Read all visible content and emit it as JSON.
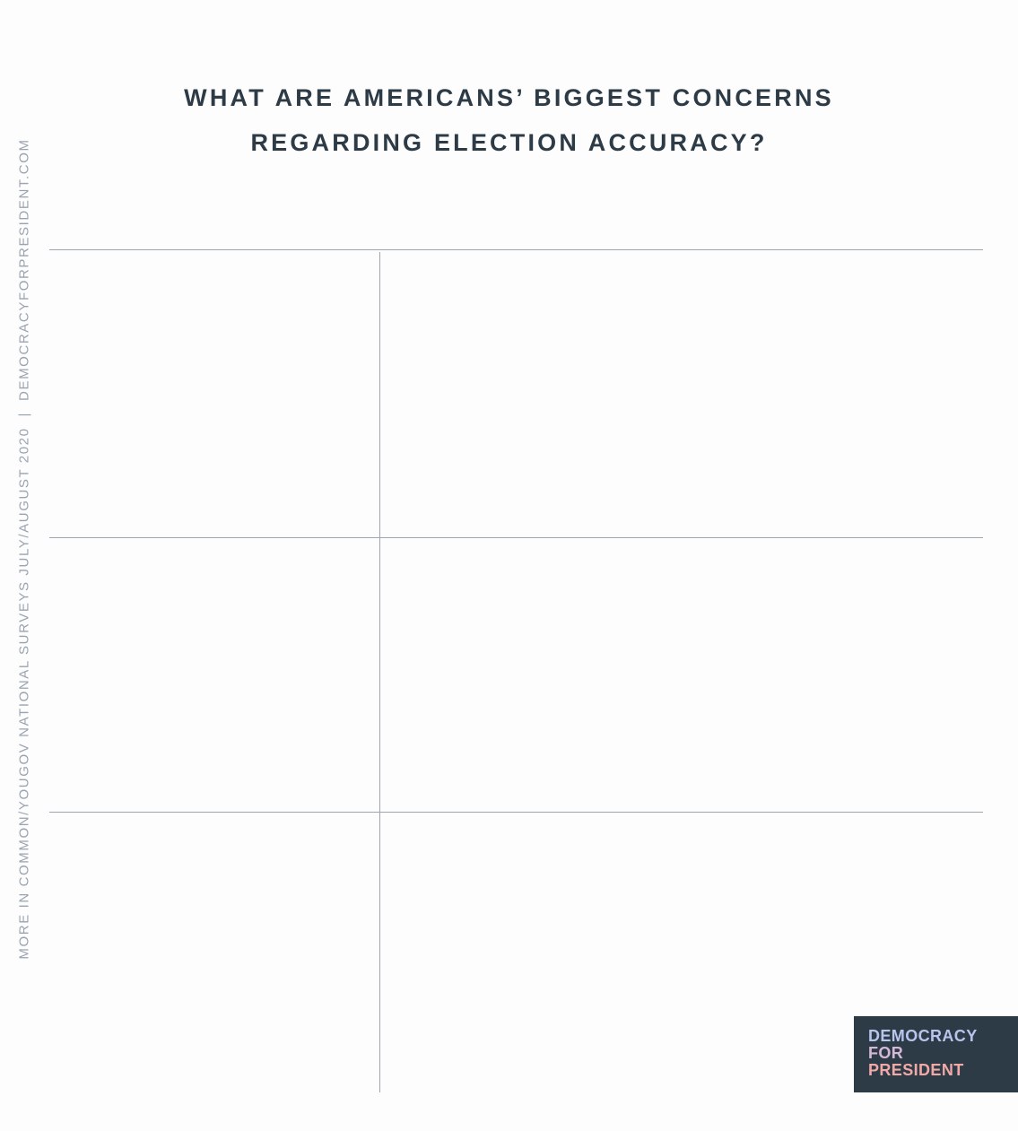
{
  "title": {
    "line1": "WHAT ARE AMERICANS’ BIGGEST CONCERNS",
    "line2": "REGARDING ELECTION ACCURACY?"
  },
  "side_caption": {
    "source": "MORE IN COMMON/YOUGOV NATIONAL SURVEYS JULY/AUGUST 2020",
    "separator": "|",
    "website": "DEMOCRACYFORPRESIDENT.COM"
  },
  "logo": {
    "line1": "DEMOCRACY",
    "line2": "FOR",
    "line3": "PRESIDENT"
  },
  "colors": {
    "title": "#2d3b47",
    "caption": "#9aa4b0",
    "grid": "#9ea6b2",
    "logo_bg": "#2d3b47"
  }
}
